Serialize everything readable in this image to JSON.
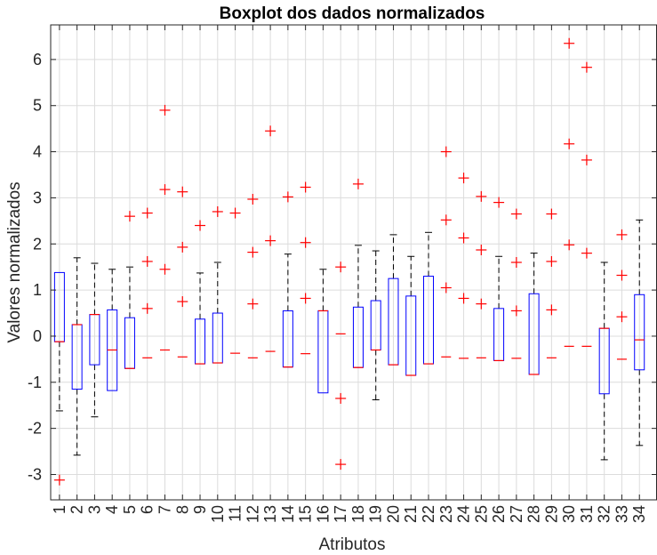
{
  "chart_data": {
    "type": "boxplot",
    "title": "Boxplot dos dados normalizados",
    "xlabel": "Atributos",
    "ylabel": "Valores normalizados",
    "categories": [
      "1",
      "2",
      "3",
      "4",
      "5",
      "6",
      "7",
      "8",
      "9",
      "10",
      "11",
      "12",
      "13",
      "14",
      "15",
      "16",
      "17",
      "18",
      "19",
      "20",
      "21",
      "22",
      "23",
      "24",
      "25",
      "26",
      "27",
      "28",
      "29",
      "30",
      "31",
      "32",
      "33",
      "34"
    ],
    "yticks": [
      -3,
      -2,
      -1,
      0,
      1,
      2,
      3,
      4,
      5,
      6
    ],
    "yticklabels": [
      "-3",
      "-2",
      "-1",
      "0",
      "1",
      "2",
      "3",
      "4",
      "5",
      "6"
    ],
    "ylim": [
      -3.55,
      6.75
    ],
    "grid": true,
    "colors": {
      "box": "#0000ff",
      "median": "#ff0000",
      "whisker": "#000000",
      "outlier": "#ff0000",
      "grid": "#dcdcdc",
      "axis": "#262626"
    },
    "boxes": [
      {
        "category": "1",
        "q1": -0.12,
        "median": -0.12,
        "q3": 1.38,
        "lower": -1.62,
        "upper": 1.38,
        "outliers": [
          -3.12
        ]
      },
      {
        "category": "2",
        "q1": -1.15,
        "median": 0.25,
        "q3": 0.25,
        "lower": -2.58,
        "upper": 1.7,
        "outliers": []
      },
      {
        "category": "3",
        "q1": -0.62,
        "median": 0.47,
        "q3": 0.47,
        "lower": -1.75,
        "upper": 1.58,
        "outliers": []
      },
      {
        "category": "4",
        "q1": -1.18,
        "median": -0.3,
        "q3": 0.57,
        "lower": -1.18,
        "upper": 1.45,
        "outliers": []
      },
      {
        "category": "5",
        "q1": -0.7,
        "median": -0.7,
        "q3": 0.4,
        "lower": -0.7,
        "upper": 1.5,
        "outliers": [
          2.6
        ]
      },
      {
        "category": "6",
        "q1": -0.47,
        "median": -0.47,
        "q3": -0.47,
        "lower": -0.47,
        "upper": -0.47,
        "outliers": [
          0.6,
          1.62,
          2.67
        ]
      },
      {
        "category": "7",
        "q1": -0.3,
        "median": -0.3,
        "q3": -0.3,
        "lower": -0.3,
        "upper": -0.3,
        "outliers": [
          1.45,
          3.18,
          4.9
        ]
      },
      {
        "category": "8",
        "q1": -0.45,
        "median": -0.45,
        "q3": -0.45,
        "lower": -0.45,
        "upper": -0.45,
        "outliers": [
          0.75,
          1.93,
          3.13
        ]
      },
      {
        "category": "9",
        "q1": -0.6,
        "median": -0.6,
        "q3": 0.37,
        "lower": -0.6,
        "upper": 1.37,
        "outliers": [
          2.4
        ]
      },
      {
        "category": "10",
        "q1": -0.58,
        "median": -0.58,
        "q3": 0.5,
        "lower": -0.58,
        "upper": 1.6,
        "outliers": [
          2.7
        ]
      },
      {
        "category": "11",
        "q1": -0.37,
        "median": -0.37,
        "q3": -0.37,
        "lower": -0.37,
        "upper": -0.37,
        "outliers": [
          2.67
        ]
      },
      {
        "category": "12",
        "q1": -0.47,
        "median": -0.47,
        "q3": -0.47,
        "lower": -0.47,
        "upper": -0.47,
        "outliers": [
          0.7,
          1.82,
          2.97
        ]
      },
      {
        "category": "13",
        "q1": -0.33,
        "median": -0.33,
        "q3": -0.33,
        "lower": -0.33,
        "upper": -0.33,
        "outliers": [
          2.07,
          4.45
        ]
      },
      {
        "category": "14",
        "q1": -0.67,
        "median": -0.67,
        "q3": 0.55,
        "lower": -0.67,
        "upper": 1.78,
        "outliers": [
          3.02
        ]
      },
      {
        "category": "15",
        "q1": -0.38,
        "median": -0.38,
        "q3": -0.38,
        "lower": -0.38,
        "upper": -0.38,
        "outliers": [
          0.82,
          2.03,
          3.23
        ]
      },
      {
        "category": "16",
        "q1": -1.23,
        "median": 0.55,
        "q3": 0.55,
        "lower": -1.23,
        "upper": 1.45,
        "outliers": []
      },
      {
        "category": "17",
        "q1": 0.05,
        "median": 0.05,
        "q3": 0.05,
        "lower": 0.05,
        "upper": 0.05,
        "outliers": [
          -2.78,
          -1.35,
          1.5
        ]
      },
      {
        "category": "18",
        "q1": -0.68,
        "median": -0.68,
        "q3": 0.63,
        "lower": -0.68,
        "upper": 1.97,
        "outliers": [
          3.3
        ]
      },
      {
        "category": "19",
        "q1": -0.3,
        "median": -0.3,
        "q3": 0.77,
        "lower": -1.38,
        "upper": 1.85,
        "outliers": []
      },
      {
        "category": "20",
        "q1": -0.62,
        "median": -0.62,
        "q3": 1.25,
        "lower": -0.62,
        "upper": 2.2,
        "outliers": []
      },
      {
        "category": "21",
        "q1": -0.85,
        "median": -0.85,
        "q3": 0.87,
        "lower": -0.85,
        "upper": 1.73,
        "outliers": []
      },
      {
        "category": "22",
        "q1": -0.6,
        "median": -0.6,
        "q3": 1.3,
        "lower": -0.6,
        "upper": 2.25,
        "outliers": []
      },
      {
        "category": "23",
        "q1": -0.45,
        "median": -0.45,
        "q3": -0.45,
        "lower": -0.45,
        "upper": -0.45,
        "outliers": [
          1.05,
          2.52,
          4.0
        ]
      },
      {
        "category": "24",
        "q1": -0.48,
        "median": -0.48,
        "q3": -0.48,
        "lower": -0.48,
        "upper": -0.48,
        "outliers": [
          0.82,
          2.13,
          3.43
        ]
      },
      {
        "category": "25",
        "q1": -0.47,
        "median": -0.47,
        "q3": -0.47,
        "lower": -0.47,
        "upper": -0.47,
        "outliers": [
          0.7,
          1.87,
          3.03
        ]
      },
      {
        "category": "26",
        "q1": -0.53,
        "median": -0.53,
        "q3": 0.6,
        "lower": -0.53,
        "upper": 1.73,
        "outliers": [
          2.9
        ]
      },
      {
        "category": "27",
        "q1": -0.48,
        "median": -0.48,
        "q3": -0.48,
        "lower": -0.48,
        "upper": -0.48,
        "outliers": [
          0.55,
          1.6,
          2.65
        ]
      },
      {
        "category": "28",
        "q1": -0.83,
        "median": -0.83,
        "q3": 0.92,
        "lower": -0.83,
        "upper": 1.8,
        "outliers": []
      },
      {
        "category": "29",
        "q1": -0.47,
        "median": -0.47,
        "q3": -0.47,
        "lower": -0.47,
        "upper": -0.47,
        "outliers": [
          0.57,
          1.62,
          2.65
        ]
      },
      {
        "category": "30",
        "q1": -0.22,
        "median": -0.22,
        "q3": -0.22,
        "lower": -0.22,
        "upper": -0.22,
        "outliers": [
          1.98,
          4.17,
          6.35
        ]
      },
      {
        "category": "31",
        "q1": -0.22,
        "median": -0.22,
        "q3": -0.22,
        "lower": -0.22,
        "upper": -0.22,
        "outliers": [
          1.8,
          3.82,
          5.83
        ]
      },
      {
        "category": "32",
        "q1": -1.25,
        "median": 0.17,
        "q3": 0.17,
        "lower": -2.68,
        "upper": 1.6,
        "outliers": []
      },
      {
        "category": "33",
        "q1": -0.5,
        "median": -0.5,
        "q3": -0.5,
        "lower": -0.5,
        "upper": -0.5,
        "outliers": [
          0.42,
          1.32,
          2.2
        ]
      },
      {
        "category": "34",
        "q1": -0.73,
        "median": -0.08,
        "q3": 0.9,
        "lower": -2.37,
        "upper": 2.52,
        "outliers": []
      }
    ]
  }
}
